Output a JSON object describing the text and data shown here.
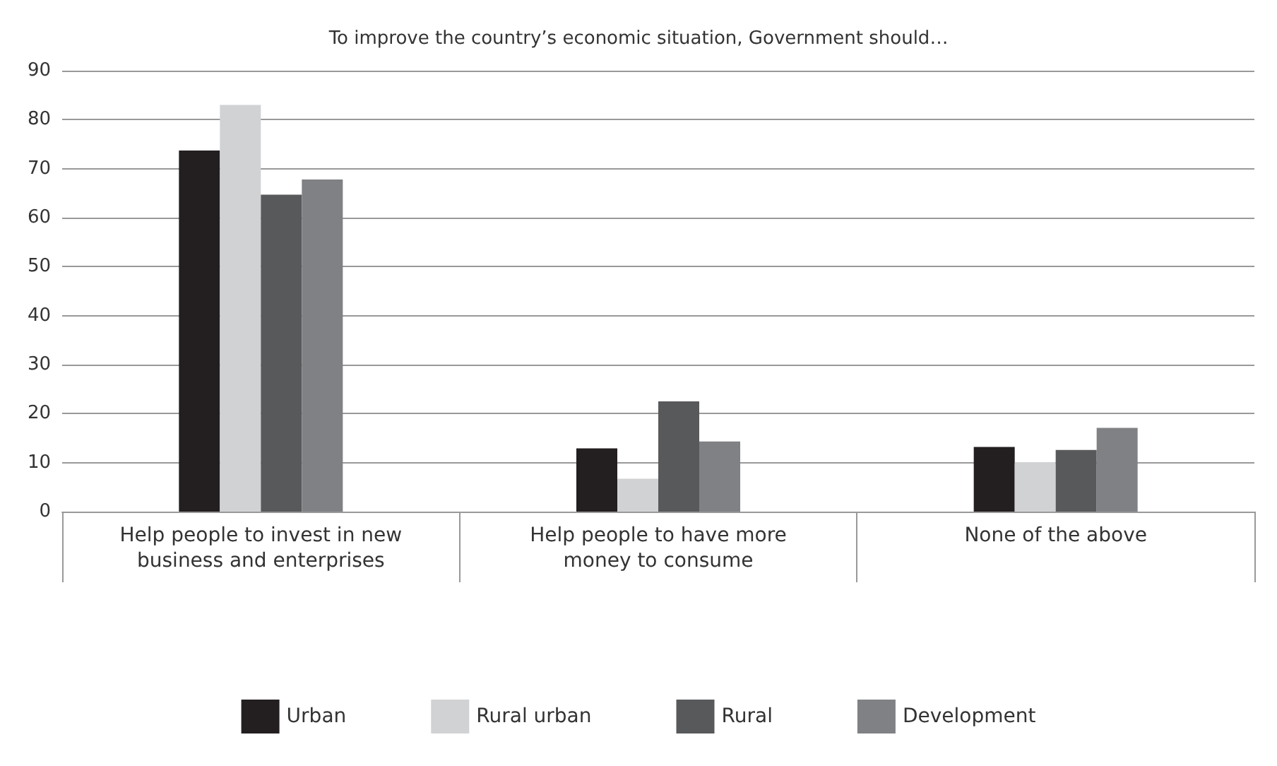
{
  "chart_data": {
    "type": "bar",
    "title": "To improve the country’s economic situation, Government should…",
    "categories": [
      "Help people to invest in new\nbusiness and enterprises",
      "Help people to have more\nmoney to consume",
      "None of the above"
    ],
    "series": [
      {
        "name": "Urban",
        "color": "#231f20",
        "values": [
          73.7,
          12.9,
          13.2
        ]
      },
      {
        "name": "Rural urban",
        "color": "#d1d2d4",
        "values": [
          83,
          6.7,
          10.1
        ]
      },
      {
        "name": "Rural",
        "color": "#58595b",
        "values": [
          64.7,
          22.5,
          12.6
        ]
      },
      {
        "name": "Development",
        "color": "#808184",
        "values": [
          67.8,
          14.3,
          17.1
        ]
      }
    ],
    "ylim": [
      0,
      90
    ],
    "yticks": [
      0,
      10,
      20,
      30,
      40,
      50,
      60,
      70,
      80,
      90
    ],
    "grid": "y",
    "legend": "bottom"
  }
}
